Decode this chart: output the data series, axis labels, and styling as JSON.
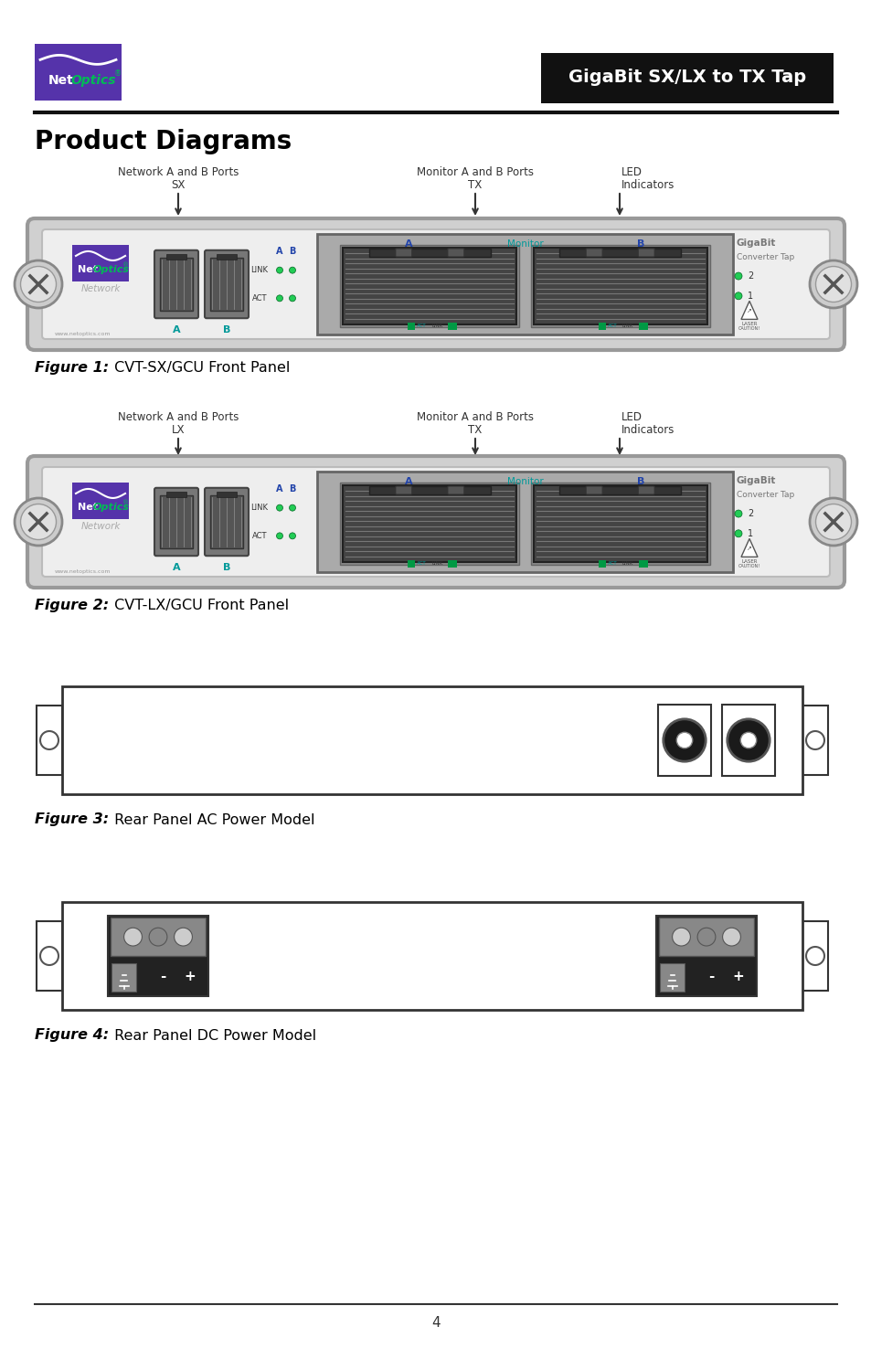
{
  "page_bg": "#ffffff",
  "header_bg": "#1a1a1a",
  "header_text": "GigaBit SX/LX to TX Tap",
  "header_text_color": "#ffffff",
  "logo_bg": "#5533aa",
  "logo_text_net": "#ffffff",
  "logo_text_optics": "#00bb55",
  "title": "Product Diagrams",
  "fig1_caption_bold": "Figure 1:",
  "fig1_caption_normal": " CVT-SX/GCU Front Panel",
  "fig2_caption_bold": "Figure 2:",
  "fig2_caption_normal": " CVT-LX/GCU Front Panel",
  "fig3_caption_bold": "Figure 3:",
  "fig3_caption_normal": " Rear Panel AC Power Model",
  "fig4_caption_bold": "Figure 4:",
  "fig4_caption_normal": " Rear Panel DC Power Model",
  "teal": "#009999",
  "green_led": "#22cc55",
  "blue_label": "#2244aa",
  "gray_text": "#aaaaaa"
}
